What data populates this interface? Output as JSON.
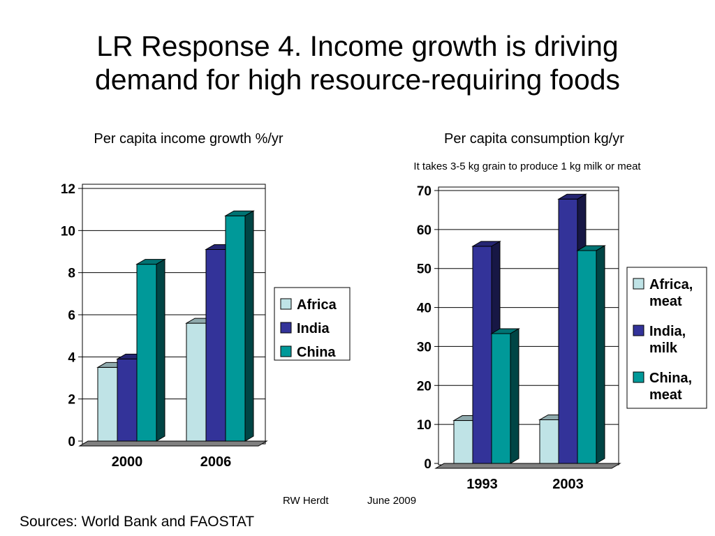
{
  "slide": {
    "title_line1": "LR Response 4. Income growth is driving",
    "title_line2": "demand for high resource-requiring foods",
    "footer_author": "RW Herdt",
    "footer_date": "June 2009",
    "sources": "Sources: World Bank and FAOSTAT"
  },
  "chart_data": [
    {
      "type": "bar",
      "title": "Per capita income growth %/yr",
      "categories": [
        "2000",
        "2006"
      ],
      "series": [
        {
          "name": "Africa",
          "values": [
            3.5,
            5.6
          ],
          "color": "#bfe3e6"
        },
        {
          "name": "India",
          "values": [
            3.9,
            9.1
          ],
          "color": "#333399"
        },
        {
          "name": "China",
          "values": [
            8.4,
            10.7
          ],
          "color": "#009999"
        }
      ],
      "ylim": [
        0,
        12
      ],
      "yticks": [
        0,
        2,
        4,
        6,
        8,
        10,
        12
      ],
      "legend": "right",
      "grid": true
    },
    {
      "type": "bar",
      "title": "Per capita consumption kg/yr",
      "annotation": "It takes 3-5 kg grain to produce 1 kg milk or meat",
      "categories": [
        "1993",
        "2003"
      ],
      "series": [
        {
          "name": "Africa, meat",
          "values": [
            11,
            11.2
          ],
          "color": "#bfe3e6"
        },
        {
          "name": "India, milk",
          "values": [
            55.7,
            67.8
          ],
          "color": "#333399"
        },
        {
          "name": "China, meat",
          "values": [
            33.3,
            54.6
          ],
          "color": "#009999"
        }
      ],
      "ylim": [
        0,
        70
      ],
      "yticks": [
        0,
        10,
        20,
        30,
        40,
        50,
        60,
        70
      ],
      "legend": "right",
      "grid": true
    }
  ]
}
